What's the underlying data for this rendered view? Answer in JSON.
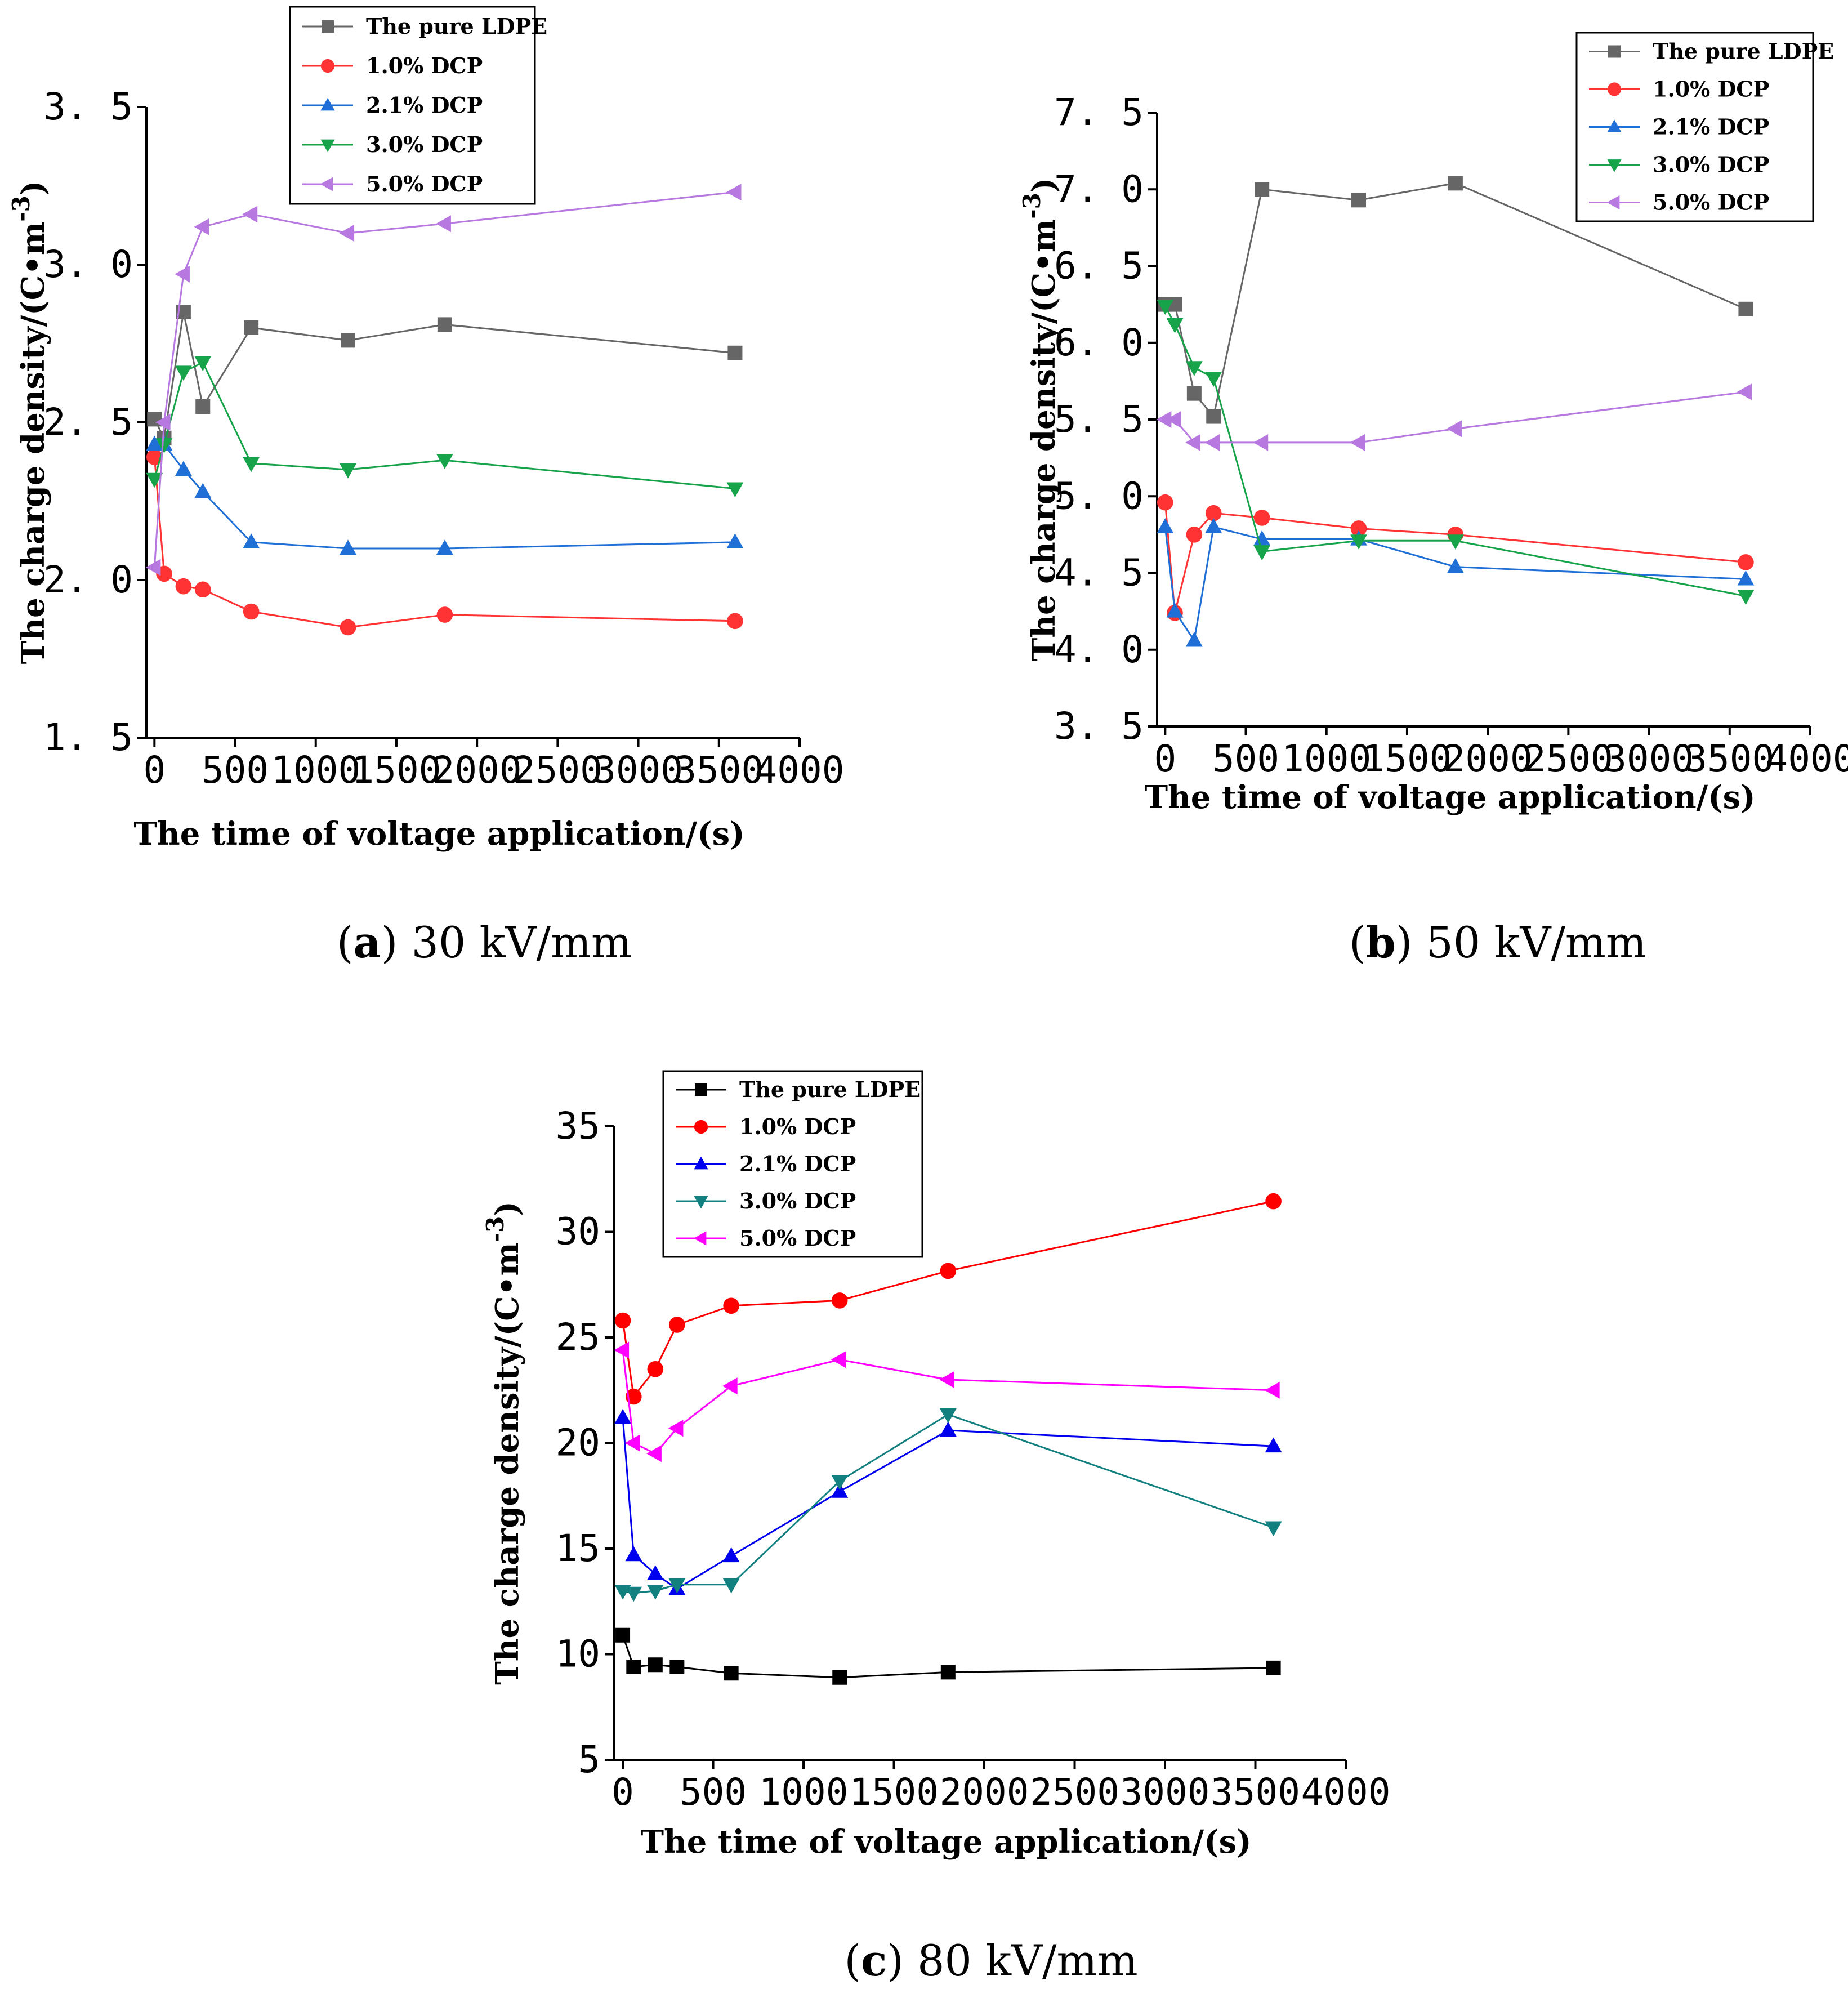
{
  "chart_data": [
    {
      "panel": "a",
      "type": "line",
      "caption_letter": "a",
      "caption_text": " 30 kV/mm",
      "xlabel": "The time of voltage application/(s)",
      "ylabel": "The charge density/(C•m",
      "ylabel_sup": "-3",
      "ylabel_close": ")",
      "xlim": [
        -50,
        4000
      ],
      "ylim": [
        1.5,
        3.5
      ],
      "xticks": [
        0,
        500,
        1000,
        1500,
        2000,
        2500,
        3000,
        3500,
        4000
      ],
      "yticks": [
        1.5,
        2.0,
        2.5,
        3.0,
        3.5
      ],
      "ytick_labels": [
        "1. 5",
        "2. 0",
        "2. 5",
        "3. 0",
        "3. 5"
      ],
      "x": [
        0,
        60,
        180,
        300,
        600,
        1200,
        1800,
        3600
      ],
      "series": [
        {
          "name": "The pure LDPE",
          "color": "#666666",
          "marker": "square",
          "values": [
            2.51,
            2.45,
            2.85,
            2.55,
            2.8,
            2.76,
            2.81,
            2.72
          ]
        },
        {
          "name": "1.0% DCP",
          "color": "#ff3333",
          "marker": "circle",
          "values": [
            2.39,
            2.02,
            1.98,
            1.97,
            1.9,
            1.85,
            1.89,
            1.87
          ]
        },
        {
          "name": "2.1% DCP",
          "color": "#1f6fd6",
          "marker": "triangle-up",
          "values": [
            2.43,
            2.43,
            2.35,
            2.28,
            2.12,
            2.1,
            2.1,
            2.12
          ]
        },
        {
          "name": "3.0% DCP",
          "color": "#17a34a",
          "marker": "triangle-down",
          "values": [
            2.32,
            2.43,
            2.66,
            2.69,
            2.37,
            2.35,
            2.38,
            2.29
          ]
        },
        {
          "name": "5.0% DCP",
          "color": "#b778e0",
          "marker": "triangle-left",
          "values": [
            2.04,
            2.5,
            2.97,
            3.12,
            3.16,
            3.1,
            3.13,
            3.23
          ]
        }
      ]
    },
    {
      "panel": "b",
      "type": "line",
      "caption_letter": "b",
      "caption_text": " 50 kV/mm",
      "xlabel": "The time of voltage application/(s)",
      "ylabel": "The charge density/(C•m",
      "ylabel_sup": "-3",
      "ylabel_close": ")",
      "xlim": [
        -50,
        4000
      ],
      "ylim": [
        3.5,
        7.5
      ],
      "xticks": [
        0,
        500,
        1000,
        1500,
        2000,
        2500,
        3000,
        3500,
        4000
      ],
      "yticks": [
        3.5,
        4.0,
        4.5,
        5.0,
        5.5,
        6.0,
        6.5,
        7.0,
        7.5
      ],
      "ytick_labels": [
        "3. 5",
        "4. 0",
        "4. 5",
        "5. 0",
        "5. 5",
        "6. 0",
        "6. 5",
        "7. 0",
        "7. 5"
      ],
      "x": [
        0,
        60,
        180,
        300,
        600,
        1200,
        1800,
        3600
      ],
      "series": [
        {
          "name": "The pure LDPE",
          "color": "#666666",
          "marker": "square",
          "values": [
            6.25,
            6.25,
            5.67,
            5.52,
            7.0,
            6.93,
            7.04,
            6.22
          ]
        },
        {
          "name": "1.0% DCP",
          "color": "#ff3333",
          "marker": "circle",
          "values": [
            4.96,
            4.24,
            4.75,
            4.89,
            4.86,
            4.79,
            4.75,
            4.57
          ]
        },
        {
          "name": "2.1% DCP",
          "color": "#1f6fd6",
          "marker": "triangle-up",
          "values": [
            4.8,
            4.25,
            4.06,
            4.8,
            4.72,
            4.72,
            4.54,
            4.46
          ]
        },
        {
          "name": "3.0% DCP",
          "color": "#17a34a",
          "marker": "triangle-down",
          "values": [
            6.24,
            6.12,
            5.84,
            5.77,
            4.64,
            4.71,
            4.71,
            4.35
          ]
        },
        {
          "name": "5.0% DCP",
          "color": "#b778e0",
          "marker": "triangle-left",
          "values": [
            5.5,
            5.5,
            5.35,
            5.35,
            5.35,
            5.35,
            5.44,
            5.68
          ]
        }
      ]
    },
    {
      "panel": "c",
      "type": "line",
      "caption_letter": "c",
      "caption_text": " 80 kV/mm",
      "xlabel": "The time of voltage application/(s)",
      "ylabel": "The charge density/(C•m",
      "ylabel_sup": "-3",
      "ylabel_close": ")",
      "xlim": [
        -50,
        4000
      ],
      "ylim": [
        5,
        35
      ],
      "xticks": [
        0,
        500,
        1000,
        1500,
        2000,
        2500,
        3000,
        3500,
        4000
      ],
      "yticks": [
        5,
        10,
        15,
        20,
        25,
        30,
        35
      ],
      "ytick_labels": [
        "5",
        "10",
        "15",
        "20",
        "25",
        "30",
        "35"
      ],
      "x": [
        0,
        60,
        180,
        300,
        600,
        1200,
        1800,
        3600
      ],
      "series": [
        {
          "name": "The pure LDPE",
          "color": "#000000",
          "marker": "square",
          "values": [
            10.9,
            9.4,
            9.5,
            9.4,
            9.1,
            8.9,
            9.15,
            9.35
          ]
        },
        {
          "name": "1.0% DCP",
          "color": "#ff0000",
          "marker": "circle",
          "values": [
            25.8,
            22.2,
            23.5,
            25.6,
            26.5,
            26.75,
            28.15,
            31.45
          ]
        },
        {
          "name": "2.1% DCP",
          "color": "#0000ee",
          "marker": "triangle-up",
          "values": [
            21.2,
            14.7,
            13.8,
            13.1,
            14.65,
            17.7,
            20.6,
            19.85
          ]
        },
        {
          "name": "3.0% DCP",
          "color": "#138080",
          "marker": "triangle-down",
          "values": [
            13.0,
            12.9,
            13.0,
            13.3,
            13.3,
            18.2,
            21.35,
            16.0
          ]
        },
        {
          "name": "5.0% DCP",
          "color": "#ff00ff",
          "marker": "triangle-left",
          "values": [
            24.4,
            20.0,
            19.5,
            20.7,
            22.7,
            23.95,
            23.0,
            22.5
          ]
        }
      ]
    }
  ]
}
